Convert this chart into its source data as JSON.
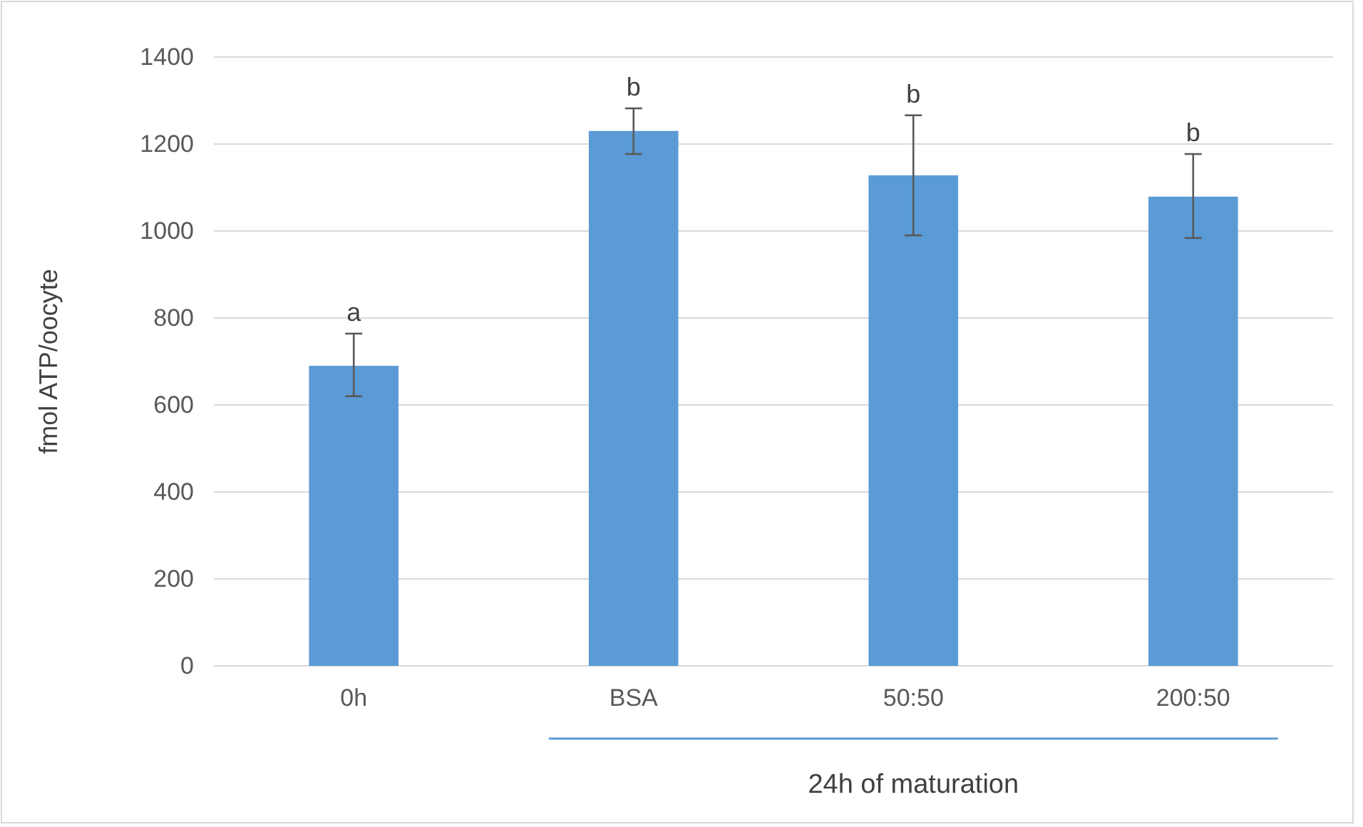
{
  "chart_data": {
    "type": "bar",
    "ylabel": "fmol ATP/oocyte",
    "categories": [
      "0h",
      "BSA",
      "50:50",
      "200:50"
    ],
    "values": [
      690,
      1230,
      1128,
      1079
    ],
    "color": "#5b9bd5",
    "errors": [
      [
        620,
        764
      ],
      [
        1177,
        1282
      ],
      [
        990,
        1266
      ],
      [
        984,
        1177
      ]
    ],
    "ylim": [
      0,
      1400
    ],
    "yticks": [
      0,
      200,
      400,
      600,
      800,
      1000,
      1200,
      1400
    ],
    "grid": "y",
    "annotations": [
      {
        "text": "a",
        "x": "0h",
        "y": 764
      },
      {
        "text": "b",
        "x": "BSA",
        "y": 1282
      },
      {
        "text": "b",
        "x": "50:50",
        "y": 1266
      },
      {
        "text": "b",
        "x": "200:50",
        "y": 1177
      },
      "24h of maturation"
    ]
  }
}
